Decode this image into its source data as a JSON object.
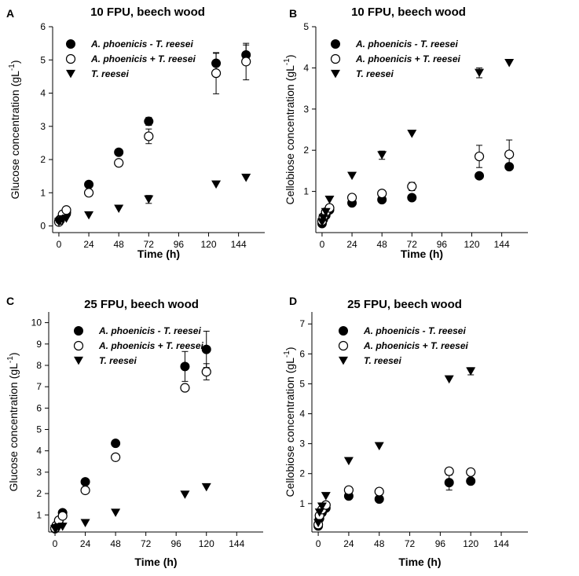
{
  "chart_data": [
    {
      "type": "scatter",
      "letter": "A",
      "title": "10 FPU, beech wood",
      "xlabel": "Time (h)",
      "ylabel_main": "Glucose concentration (gL",
      "ylabel_sup": "-1",
      "ylabel_close": ")",
      "xlim": [
        -5,
        165
      ],
      "ylim": [
        -0.2,
        6
      ],
      "xticks": [
        0,
        24,
        48,
        72,
        96,
        120,
        144
      ],
      "yticks": [
        0,
        1,
        2,
        3,
        4,
        5,
        6
      ],
      "series": [
        {
          "name": "A. phoenicis - T. reesei",
          "marker": "filled-circle",
          "x": [
            0,
            1,
            3,
            6,
            24,
            48,
            72,
            126,
            150
          ],
          "y": [
            0.15,
            0.2,
            0.3,
            0.4,
            1.25,
            2.22,
            3.15,
            4.9,
            5.15
          ],
          "err": [
            0,
            0,
            0,
            0,
            0,
            0,
            0.12,
            0.3,
            0.3
          ]
        },
        {
          "name": "A. phoenicis + T. reesei",
          "marker": "open-circle",
          "x": [
            0,
            1,
            3,
            6,
            24,
            48,
            72,
            126,
            150
          ],
          "y": [
            0.12,
            0.18,
            0.35,
            0.48,
            1.0,
            1.9,
            2.7,
            4.6,
            4.95
          ],
          "err": [
            0,
            0,
            0,
            0,
            0,
            0,
            0.22,
            0.62,
            0.55
          ]
        },
        {
          "name": "T. reesei",
          "marker": "filled-triangle-down",
          "x": [
            0,
            1,
            3,
            6,
            24,
            48,
            72,
            126,
            150
          ],
          "y": [
            0.12,
            0.15,
            0.2,
            0.22,
            0.32,
            0.52,
            0.8,
            1.25,
            1.45
          ],
          "err": [
            0,
            0,
            0,
            0,
            0,
            0,
            0.12,
            0,
            0
          ]
        }
      ]
    },
    {
      "type": "scatter",
      "letter": "B",
      "title": "10 FPU, beech wood",
      "xlabel": "Time (h)",
      "ylabel_main": "Cellobiose concentration (gL",
      "ylabel_sup": "-1",
      "ylabel_close": ")",
      "xlim": [
        -5,
        165
      ],
      "ylim": [
        0,
        5
      ],
      "xticks": [
        0,
        24,
        48,
        72,
        96,
        120,
        144
      ],
      "yticks": [
        1,
        2,
        3,
        4,
        5
      ],
      "series": [
        {
          "name": "A. phoenicis - T. reesei",
          "marker": "filled-circle",
          "x": [
            0,
            1,
            3,
            6,
            24,
            48,
            72,
            126,
            150
          ],
          "y": [
            0.22,
            0.32,
            0.42,
            0.55,
            0.72,
            0.8,
            0.85,
            1.38,
            1.6
          ],
          "err": [
            0,
            0,
            0,
            0,
            0,
            0,
            0,
            0,
            0
          ]
        },
        {
          "name": "A. phoenicis + T. reesei",
          "marker": "open-circle",
          "x": [
            0,
            1,
            3,
            6,
            24,
            48,
            72,
            126,
            150
          ],
          "y": [
            0.28,
            0.38,
            0.5,
            0.6,
            0.85,
            0.95,
            1.12,
            1.85,
            1.9
          ],
          "err": [
            0,
            0,
            0,
            0,
            0,
            0,
            0.1,
            0.27,
            0.35
          ]
        },
        {
          "name": "T. reesei",
          "marker": "filled-triangle-down",
          "x": [
            0,
            1,
            3,
            6,
            24,
            48,
            72,
            126,
            150
          ],
          "y": [
            0.25,
            0.35,
            0.5,
            0.8,
            1.38,
            1.88,
            2.4,
            3.88,
            4.12
          ],
          "err": [
            0,
            0,
            0,
            0,
            0,
            0.1,
            0,
            0.12,
            0
          ]
        }
      ]
    },
    {
      "type": "scatter",
      "letter": "C",
      "title": "25 FPU, beech wood",
      "xlabel": "Time (h)",
      "ylabel_main": "Glucose concentration (gL",
      "ylabel_sup": "-1",
      "ylabel_close": ")",
      "xlim": [
        -5,
        165
      ],
      "ylim": [
        0.2,
        10.5
      ],
      "xticks": [
        0,
        24,
        48,
        72,
        96,
        120,
        144
      ],
      "yticks": [
        1,
        2,
        3,
        4,
        5,
        6,
        7,
        8,
        9,
        10
      ],
      "series": [
        {
          "name": "A. phoenicis - T. reesei",
          "marker": "filled-circle",
          "x": [
            0,
            1,
            3,
            6,
            24,
            48,
            103,
            120
          ],
          "y": [
            0.35,
            0.45,
            0.7,
            1.1,
            2.55,
            4.35,
            7.95,
            8.75
          ],
          "err": [
            0,
            0,
            0,
            0,
            0,
            0,
            0.7,
            0.85
          ]
        },
        {
          "name": "A. phoenicis + T. reesei",
          "marker": "open-circle",
          "x": [
            0,
            1,
            3,
            6,
            24,
            48,
            103,
            120
          ],
          "y": [
            0.38,
            0.5,
            0.75,
            0.95,
            2.15,
            3.7,
            6.95,
            7.7
          ],
          "err": [
            0,
            0,
            0,
            0,
            0,
            0,
            0,
            0.38
          ]
        },
        {
          "name": "T. reesei",
          "marker": "filled-triangle-down",
          "x": [
            0,
            1,
            3,
            6,
            24,
            48,
            103,
            120
          ],
          "y": [
            0.35,
            0.38,
            0.42,
            0.45,
            0.62,
            1.1,
            1.95,
            2.3
          ],
          "err": [
            0,
            0,
            0,
            0,
            0,
            0,
            0,
            0
          ]
        }
      ]
    },
    {
      "type": "scatter",
      "letter": "D",
      "title": "25 FPU, beech wood",
      "xlabel": "Time (h)",
      "ylabel_main": "Cellobiose concentration (gL",
      "ylabel_sup": "-1",
      "ylabel_close": ")",
      "xlim": [
        -5,
        165
      ],
      "ylim": [
        0.05,
        7.4
      ],
      "xticks": [
        0,
        24,
        48,
        72,
        96,
        120,
        144
      ],
      "yticks": [
        1,
        2,
        3,
        4,
        5,
        6,
        7
      ],
      "series": [
        {
          "name": "A. phoenicis - T. reesei",
          "marker": "filled-circle",
          "x": [
            0,
            1,
            3,
            6,
            24,
            48,
            103,
            120
          ],
          "y": [
            0.25,
            0.5,
            0.7,
            0.85,
            1.25,
            1.15,
            1.7,
            1.75
          ],
          "err": [
            0,
            0,
            0,
            0,
            0,
            0,
            0.25,
            0
          ]
        },
        {
          "name": "A. phoenicis + T. reesei",
          "marker": "open-circle",
          "x": [
            0,
            1,
            3,
            6,
            24,
            48,
            103,
            120
          ],
          "y": [
            0.3,
            0.6,
            0.8,
            0.95,
            1.45,
            1.4,
            2.08,
            2.05
          ],
          "err": [
            0,
            0,
            0,
            0,
            0,
            0,
            0,
            0
          ]
        },
        {
          "name": "T. reesei",
          "marker": "filled-triangle-down",
          "x": [
            0,
            1,
            3,
            6,
            24,
            48,
            103,
            120
          ],
          "y": [
            0.35,
            0.7,
            0.9,
            1.25,
            2.42,
            2.92,
            5.15,
            5.42
          ],
          "err": [
            0,
            0,
            0,
            0,
            0,
            0,
            0,
            0.12
          ]
        }
      ]
    }
  ]
}
